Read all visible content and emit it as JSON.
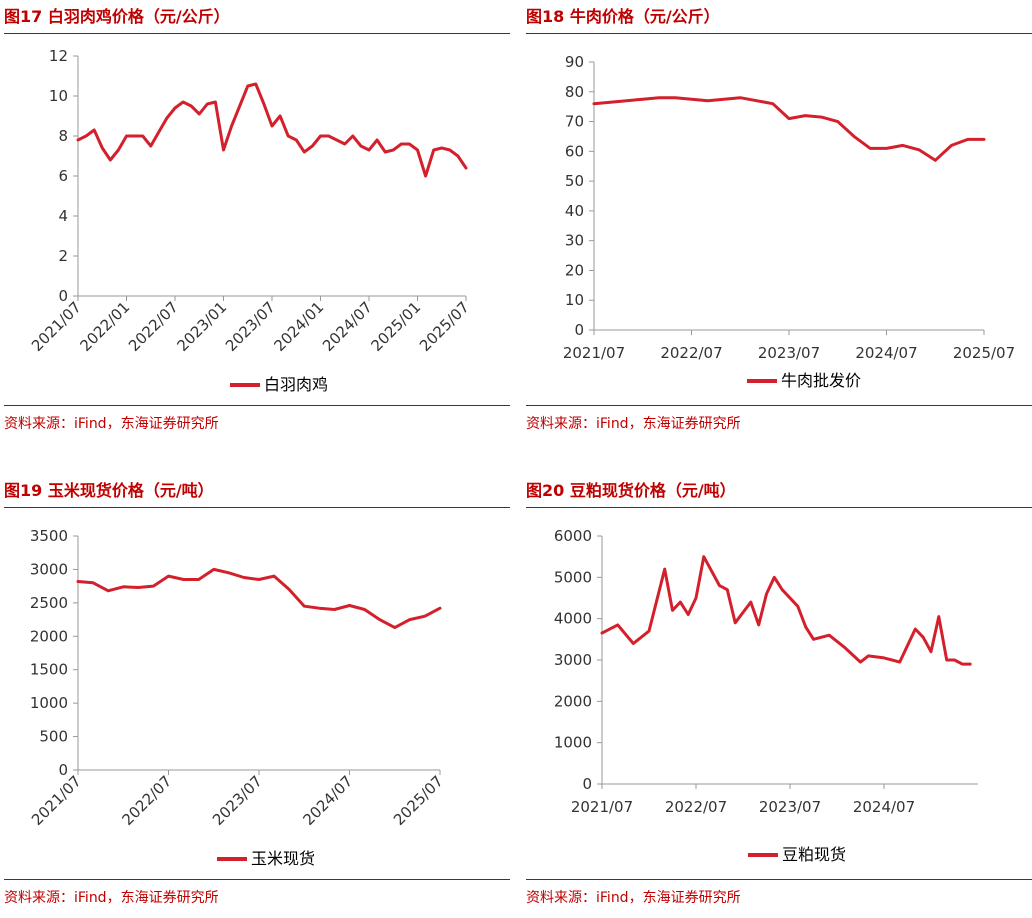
{
  "source_text": "资料来源：iFind，东海证券研究所",
  "colors": {
    "accent": "#c00000",
    "series": "#d4202c",
    "axis": "#999999",
    "tick_text": "#333333"
  },
  "chart_data": [
    {
      "id": "fig17",
      "type": "line",
      "title": "图17  白羽肉鸡价格（元/公斤）",
      "ylim": [
        0,
        12
      ],
      "yticks": [
        0,
        2,
        4,
        6,
        8,
        10,
        12
      ],
      "x_domain": [
        "2021/07",
        "2025/07"
      ],
      "x_tick_labels": [
        "2021/07",
        "2022/01",
        "2022/07",
        "2023/01",
        "2023/07",
        "2024/01",
        "2024/07",
        "2025/01",
        "2025/07"
      ],
      "x_tick_rotation": -45,
      "series": [
        {
          "name": "白羽肉鸡",
          "x": [
            "2021/07",
            "2021/08",
            "2021/09",
            "2021/10",
            "2021/11",
            "2021/12",
            "2022/01",
            "2022/02",
            "2022/03",
            "2022/04",
            "2022/05",
            "2022/06",
            "2022/07",
            "2022/08",
            "2022/09",
            "2022/10",
            "2022/11",
            "2022/12",
            "2023/01",
            "2023/02",
            "2023/03",
            "2023/04",
            "2023/05",
            "2023/06",
            "2023/07",
            "2023/08",
            "2023/09",
            "2023/10",
            "2023/11",
            "2023/12",
            "2024/01",
            "2024/02",
            "2024/03",
            "2024/04",
            "2024/05",
            "2024/06",
            "2024/07",
            "2024/08",
            "2024/09",
            "2024/10",
            "2024/11",
            "2024/12",
            "2025/01",
            "2025/02",
            "2025/03",
            "2025/04",
            "2025/05",
            "2025/06",
            "2025/07"
          ],
          "y": [
            7.8,
            8.0,
            8.3,
            7.4,
            6.8,
            7.3,
            8.0,
            8.0,
            8.0,
            7.5,
            8.2,
            8.9,
            9.4,
            9.7,
            9.5,
            9.1,
            9.6,
            9.7,
            7.3,
            8.5,
            9.5,
            10.5,
            10.6,
            9.6,
            8.5,
            9.0,
            8.0,
            7.8,
            7.2,
            7.5,
            8.0,
            8.0,
            7.8,
            7.6,
            8.0,
            7.5,
            7.3,
            7.8,
            7.2,
            7.3,
            7.6,
            7.6,
            7.3,
            6.0,
            7.3,
            7.4,
            7.3,
            7.0,
            6.4
          ]
        }
      ],
      "legend": "bottom-center"
    },
    {
      "id": "fig18",
      "type": "line",
      "title": "图18  牛肉价格（元/公斤）",
      "ylim": [
        0,
        90
      ],
      "yticks": [
        0,
        10,
        20,
        30,
        40,
        50,
        60,
        70,
        80,
        90
      ],
      "x_domain": [
        "2021/07",
        "2025/07"
      ],
      "x_tick_labels": [
        "2021/07",
        "2022/07",
        "2023/07",
        "2024/07",
        "2025/07"
      ],
      "x_tick_rotation": 0,
      "series": [
        {
          "name": "牛肉批发价",
          "x": [
            "2021/07",
            "2021/09",
            "2021/11",
            "2022/01",
            "2022/03",
            "2022/05",
            "2022/07",
            "2022/09",
            "2022/11",
            "2023/01",
            "2023/03",
            "2023/05",
            "2023/07",
            "2023/09",
            "2023/11",
            "2024/01",
            "2024/03",
            "2024/05",
            "2024/07",
            "2024/09",
            "2024/11",
            "2025/01",
            "2025/03",
            "2025/05",
            "2025/07"
          ],
          "y": [
            76,
            76.5,
            77,
            77.5,
            78,
            78,
            77.5,
            77,
            77.5,
            78,
            77,
            76,
            71,
            72,
            71.5,
            70,
            65,
            61,
            61,
            62,
            60.5,
            57,
            62,
            64,
            64
          ]
        }
      ],
      "legend": "bottom-center"
    },
    {
      "id": "fig19",
      "type": "line",
      "title": "图19  玉米现货价格（元/吨）",
      "ylim": [
        0,
        3500
      ],
      "yticks": [
        0,
        500,
        1000,
        1500,
        2000,
        2500,
        3000,
        3500
      ],
      "x_domain": [
        "2021/07",
        "2025/07"
      ],
      "x_tick_labels": [
        "2021/07",
        "2022/07",
        "2023/07",
        "2024/07",
        "2025/07"
      ],
      "x_tick_rotation": -45,
      "series": [
        {
          "name": "玉米现货",
          "x": [
            "2021/07",
            "2021/09",
            "2021/11",
            "2022/01",
            "2022/03",
            "2022/05",
            "2022/07",
            "2022/09",
            "2022/11",
            "2023/01",
            "2023/03",
            "2023/05",
            "2023/07",
            "2023/09",
            "2023/11",
            "2024/01",
            "2024/03",
            "2024/05",
            "2024/07",
            "2024/09",
            "2024/11",
            "2025/01",
            "2025/03",
            "2025/05",
            "2025/07"
          ],
          "y": [
            2820,
            2800,
            2680,
            2740,
            2730,
            2750,
            2900,
            2850,
            2850,
            3000,
            2950,
            2880,
            2850,
            2900,
            2700,
            2450,
            2420,
            2400,
            2460,
            2400,
            2250,
            2130,
            2250,
            2300,
            2420
          ]
        }
      ],
      "legend": "bottom-center"
    },
    {
      "id": "fig20",
      "type": "line",
      "title": "图20  豆粕现货价格（元/吨）",
      "ylim": [
        0,
        6000
      ],
      "yticks": [
        0,
        1000,
        2000,
        3000,
        4000,
        5000,
        6000
      ],
      "x_domain": [
        "2021/07",
        "2025/07"
      ],
      "x_tick_labels": [
        "2021/07",
        "2022/07",
        "2023/07",
        "2024/07"
      ],
      "x_tick_rotation": 0,
      "series": [
        {
          "name": "豆粕现货",
          "x": [
            "2021/07",
            "2021/09",
            "2021/11",
            "2022/01",
            "2022/03",
            "2022/04",
            "2022/05",
            "2022/06",
            "2022/07",
            "2022/08",
            "2022/10",
            "2022/11",
            "2022/12",
            "2023/02",
            "2023/03",
            "2023/04",
            "2023/05",
            "2023/06",
            "2023/08",
            "2023/09",
            "2023/10",
            "2023/12",
            "2024/02",
            "2024/04",
            "2024/05",
            "2024/07",
            "2024/09",
            "2024/11",
            "2024/12",
            "2025/01",
            "2025/02",
            "2025/03",
            "2025/04",
            "2025/05",
            "2025/06"
          ],
          "y": [
            3650,
            3850,
            3400,
            3700,
            5200,
            4200,
            4400,
            4100,
            4500,
            5500,
            4800,
            4700,
            3900,
            4400,
            3850,
            4600,
            5000,
            4700,
            4300,
            3800,
            3500,
            3600,
            3300,
            2950,
            3100,
            3050,
            2950,
            3750,
            3550,
            3200,
            4050,
            3000,
            3000,
            2900,
            2900
          ]
        }
      ],
      "legend": "bottom-center"
    }
  ]
}
